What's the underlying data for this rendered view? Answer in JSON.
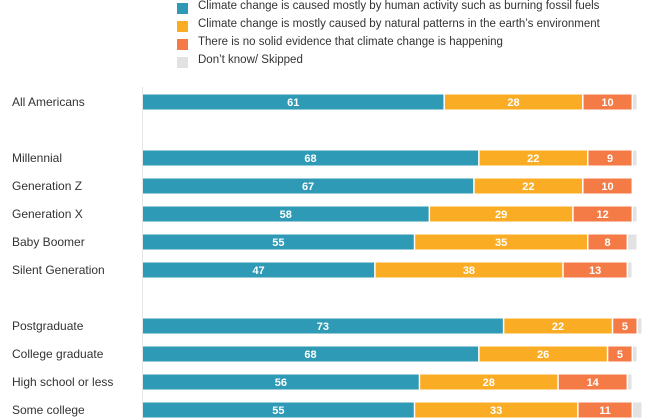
{
  "chart_data": {
    "type": "bar",
    "orientation": "horizontal",
    "stacked": true,
    "legend_position": "top",
    "series": [
      {
        "name": "Climate change is caused mostly by human activity such as burning fossil fuels",
        "color": "#2E9AB5",
        "values": [
          61,
          68,
          67,
          58,
          55,
          47,
          73,
          68,
          56,
          55
        ]
      },
      {
        "name": "Climate change is mostly caused by natural patterns in the earth’s environment",
        "color": "#F9AC24",
        "values": [
          28,
          22,
          22,
          29,
          35,
          38,
          22,
          26,
          28,
          33
        ]
      },
      {
        "name": "There is no solid evidence that climate change is happening",
        "color": "#F47A46",
        "values": [
          10,
          9,
          10,
          12,
          8,
          13,
          5,
          5,
          14,
          11
        ]
      },
      {
        "name": "Don’t know/ Skipped",
        "color": "#E2E2E2",
        "values": [
          1,
          1,
          0,
          1,
          2,
          1,
          1,
          1,
          1,
          2
        ]
      }
    ],
    "categories": [
      "All Americans",
      "Millennial",
      "Generation Z",
      "Generation X",
      "Baby Boomer",
      "Silent Generation",
      "Postgraduate",
      "College graduate",
      "High school or less",
      "Some college"
    ],
    "groups": [
      [
        0
      ],
      [
        1,
        2,
        3,
        4,
        5
      ],
      [
        6,
        7,
        8,
        9
      ]
    ],
    "xlim": [
      0,
      100
    ],
    "grid": false
  }
}
